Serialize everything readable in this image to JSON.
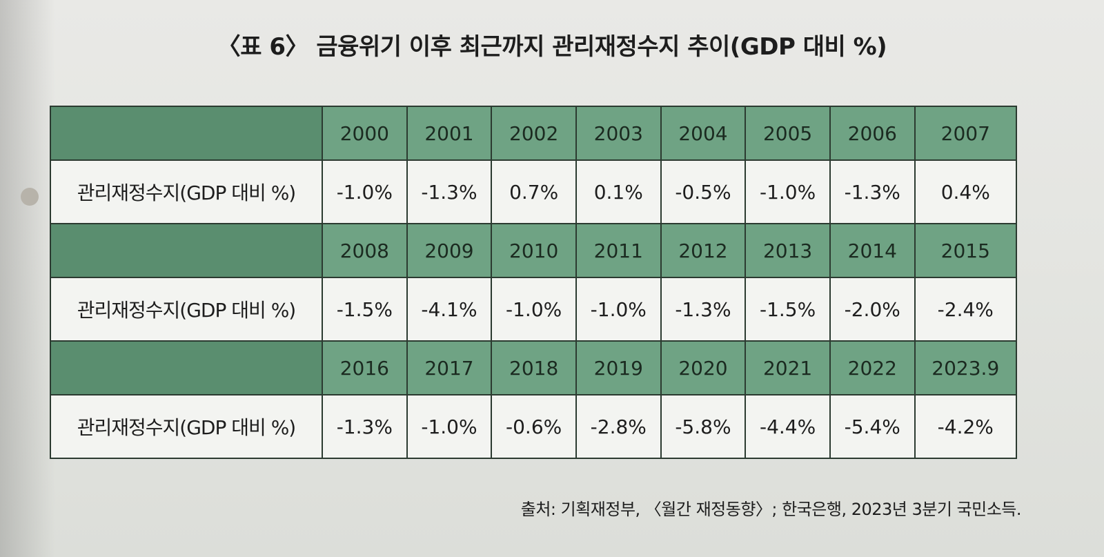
{
  "title": "〈표 6〉 금융위기 이후 최근까지 관리재정수지 추이(GDP 대비 %)",
  "row_label": "관리재정수지(GDP 대비 %)",
  "blocks": [
    {
      "years": [
        "2000",
        "2001",
        "2002",
        "2003",
        "2004",
        "2005",
        "2006",
        "2007"
      ],
      "values": [
        "-1.0%",
        "-1.3%",
        "0.7%",
        "0.1%",
        "-0.5%",
        "-1.0%",
        "-1.3%",
        "0.4%"
      ]
    },
    {
      "years": [
        "2008",
        "2009",
        "2010",
        "2011",
        "2012",
        "2013",
        "2014",
        "2015"
      ],
      "values": [
        "-1.5%",
        "-4.1%",
        "-1.0%",
        "-1.0%",
        "-1.3%",
        "-1.5%",
        "-2.0%",
        "-2.4%"
      ]
    },
    {
      "years": [
        "2016",
        "2017",
        "2018",
        "2019",
        "2020",
        "2021",
        "2022",
        "2023.9"
      ],
      "values": [
        "-1.3%",
        "-1.0%",
        "-0.6%",
        "-2.8%",
        "-5.8%",
        "-4.4%",
        "-5.4%",
        "-4.2%"
      ]
    }
  ],
  "source": "출처: 기획재정부, 〈월간 재정동향〉; 한국은행, 2023년 3분기 국민소득."
}
